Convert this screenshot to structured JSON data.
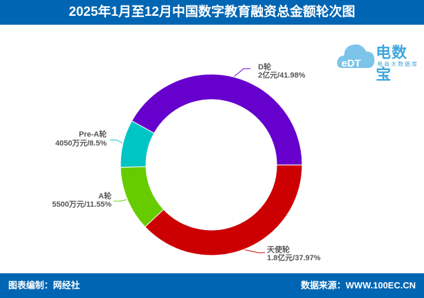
{
  "header": {
    "title": "2025年1月至12月中国数字教育融资总金额轮次图"
  },
  "footer": {
    "left": "图表编制：网经社",
    "right": "数据来源：WWW.100EC.CN"
  },
  "logo": {
    "name": "电数宝",
    "subtitle": "电商大数据库",
    "mark": "eDT"
  },
  "chart_data": {
    "type": "pie",
    "donut": true,
    "title": "2025年1月至12月中国数字教育融资总金额轮次图",
    "slices": [
      {
        "name": "D轮",
        "amount": "2亿元",
        "percent": 41.98,
        "label": "2亿元/41.98%",
        "color": "#6600cc"
      },
      {
        "name": "天使轮",
        "amount": "1.8亿元",
        "percent": 37.97,
        "label": "1.8亿元/37.97%",
        "color": "#cc0000"
      },
      {
        "name": "A轮",
        "amount": "5500万元",
        "percent": 11.55,
        "label": "5500万元/11.55%",
        "color": "#66cc00"
      },
      {
        "name": "Pre-A轮",
        "amount": "4050万元",
        "percent": 8.5,
        "label": "4050万元/8.5%",
        "color": "#00c5c5"
      }
    ]
  }
}
